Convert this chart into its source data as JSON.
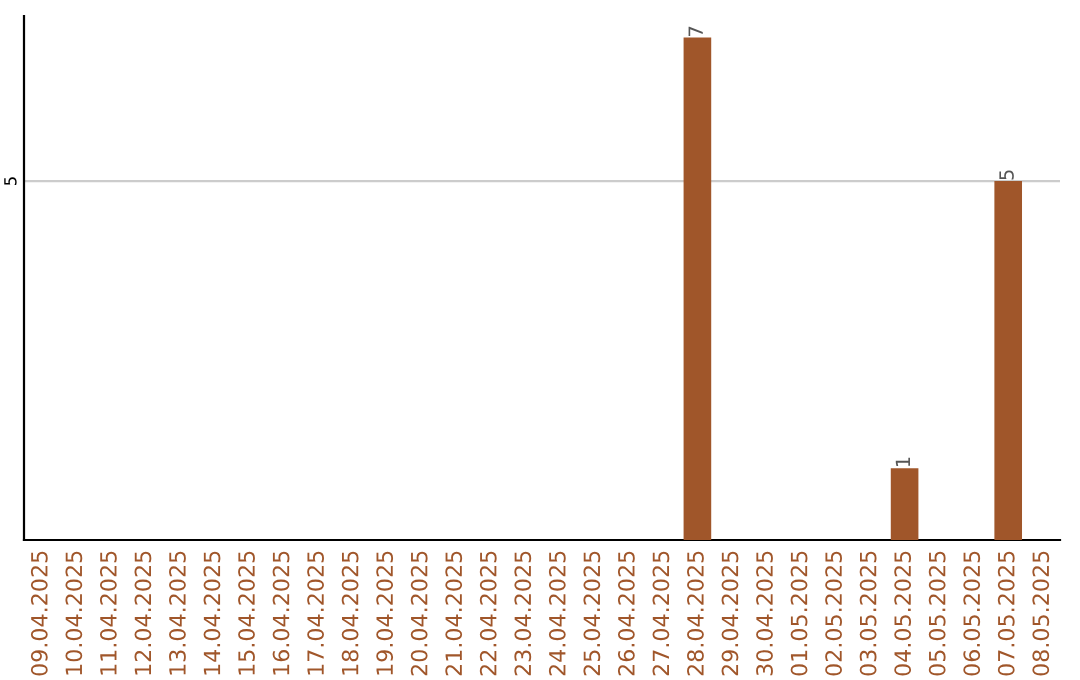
{
  "chart_data": {
    "type": "bar",
    "categories": [
      "09.04.2025",
      "10.04.2025",
      "11.04.2025",
      "12.04.2025",
      "13.04.2025",
      "14.04.2025",
      "15.04.2025",
      "16.04.2025",
      "17.04.2025",
      "18.04.2025",
      "19.04.2025",
      "20.04.2025",
      "21.04.2025",
      "22.04.2025",
      "23.04.2025",
      "24.04.2025",
      "25.04.2025",
      "26.04.2025",
      "27.04.2025",
      "28.04.2025",
      "29.04.2025",
      "30.04.2025",
      "01.05.2025",
      "02.05.2025",
      "03.05.2025",
      "04.05.2025",
      "05.05.2025",
      "06.05.2025",
      "07.05.2025",
      "08.05.2025"
    ],
    "values": [
      null,
      null,
      null,
      null,
      null,
      null,
      null,
      null,
      null,
      null,
      null,
      null,
      null,
      null,
      null,
      null,
      null,
      null,
      null,
      7,
      null,
      null,
      null,
      null,
      null,
      1,
      null,
      null,
      5,
      null
    ],
    "value_labels": [
      null,
      null,
      null,
      null,
      null,
      null,
      null,
      null,
      null,
      null,
      null,
      null,
      null,
      null,
      null,
      null,
      null,
      null,
      null,
      "7",
      null,
      null,
      null,
      null,
      null,
      "1",
      null,
      null,
      "5",
      null
    ],
    "color": "#a0562a",
    "ylim": [
      0,
      7.3
    ],
    "ref_lines": [
      {
        "axis": "y",
        "value": 5,
        "label": "5",
        "color": "#cccccc"
      }
    ],
    "legend": false
  }
}
